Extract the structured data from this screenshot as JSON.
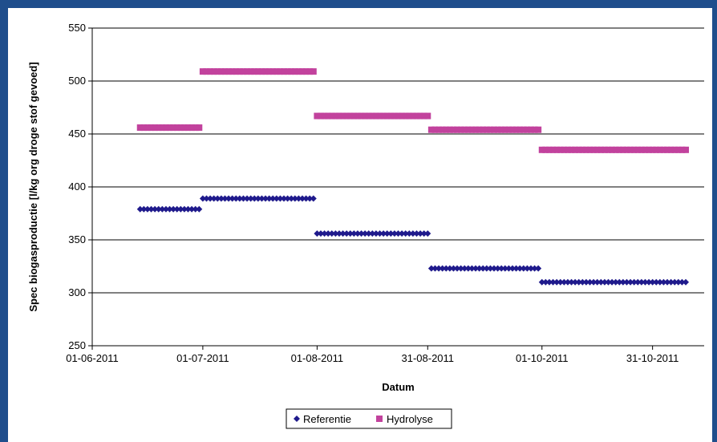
{
  "chart_data": {
    "type": "scatter",
    "title": "",
    "xlabel": "Datum",
    "ylabel": "Spec biogasproductie [l/kg org droge stof gevoed]",
    "ylim": [
      250,
      550
    ],
    "yticks": [
      "250",
      "300",
      "350",
      "400",
      "450",
      "500",
      "550"
    ],
    "xlim": [
      "2011-06-01",
      "2011-11-14"
    ],
    "xticks": [
      {
        "date": "2011-06-01",
        "label": "01-06-2011"
      },
      {
        "date": "2011-07-01",
        "label": "01-07-2011"
      },
      {
        "date": "2011-08-01",
        "label": "01-08-2011"
      },
      {
        "date": "2011-08-31",
        "label": "31-08-2011"
      },
      {
        "date": "2011-10-01",
        "label": "01-10-2011"
      },
      {
        "date": "2011-10-31",
        "label": "31-10-2011"
      }
    ],
    "grid": "horizontal",
    "legend_position": "bottom",
    "series": [
      {
        "name": "Referentie",
        "color": "#1f1a8c",
        "marker": "diamond",
        "segments": [
          {
            "x_start": "2011-06-14",
            "x_end": "2011-06-30",
            "y": 379
          },
          {
            "x_start": "2011-07-01",
            "x_end": "2011-07-31",
            "y": 389
          },
          {
            "x_start": "2011-08-01",
            "x_end": "2011-08-31",
            "y": 356
          },
          {
            "x_start": "2011-09-01",
            "x_end": "2011-09-30",
            "y": 323
          },
          {
            "x_start": "2011-10-01",
            "x_end": "2011-11-09",
            "y": 310
          }
        ]
      },
      {
        "name": "Hydrolyse",
        "color": "#c2429d",
        "marker": "square",
        "segments": [
          {
            "x_start": "2011-06-14",
            "x_end": "2011-06-30",
            "y": 456
          },
          {
            "x_start": "2011-07-01",
            "x_end": "2011-07-31",
            "y": 509
          },
          {
            "x_start": "2011-08-01",
            "x_end": "2011-08-31",
            "y": 467
          },
          {
            "x_start": "2011-09-01",
            "x_end": "2011-09-30",
            "y": 454
          },
          {
            "x_start": "2011-10-01",
            "x_end": "2011-11-09",
            "y": 435
          }
        ]
      }
    ]
  }
}
